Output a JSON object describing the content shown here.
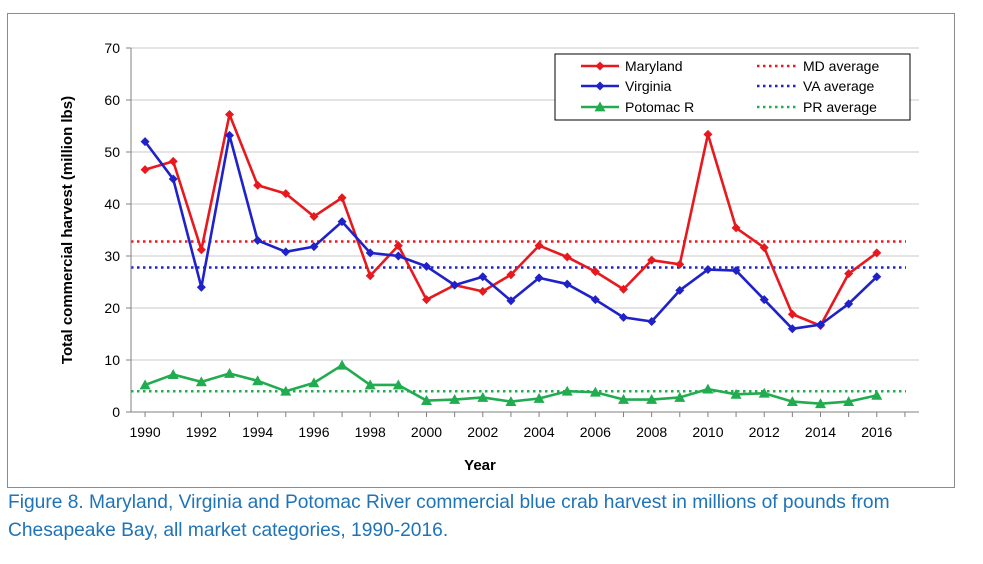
{
  "chart_data": {
    "type": "line",
    "title": "",
    "xlabel": "Year",
    "ylabel": "Total commercial harvest (million lbs)",
    "xlim": [
      1989.5,
      2017.5
    ],
    "ylim": [
      0,
      70
    ],
    "y_ticks": [
      "0",
      "10",
      "20",
      "30",
      "40",
      "50",
      "60",
      "70"
    ],
    "x_ticks": [
      "1990",
      "1992",
      "1994",
      "1996",
      "1998",
      "2000",
      "2002",
      "2004",
      "2006",
      "2008",
      "2010",
      "2012",
      "2014",
      "2016"
    ],
    "grid": true,
    "legend_position": "top-right",
    "x": [
      1990,
      1991,
      1992,
      1993,
      1994,
      1995,
      1996,
      1997,
      1998,
      1999,
      2000,
      2001,
      2002,
      2003,
      2004,
      2005,
      2006,
      2007,
      2008,
      2009,
      2010,
      2011,
      2012,
      2013,
      2014,
      2015,
      2016
    ],
    "series": [
      {
        "name": "Maryland",
        "color": "#e8191e",
        "marker": "diamond",
        "values": [
          46.6,
          48.2,
          31.2,
          57.2,
          43.6,
          42.0,
          37.6,
          41.2,
          26.2,
          32.0,
          21.6,
          24.4,
          23.2,
          26.4,
          32.0,
          29.8,
          27.0,
          23.6,
          29.2,
          28.4,
          53.4,
          35.4,
          31.6,
          18.8,
          16.6,
          26.6,
          30.6
        ]
      },
      {
        "name": "Virginia",
        "color": "#1f22c8",
        "marker": "diamond",
        "values": [
          52.0,
          44.8,
          24.0,
          53.2,
          33.0,
          30.8,
          31.8,
          36.6,
          30.6,
          30.0,
          28.0,
          24.4,
          26.0,
          21.4,
          25.8,
          24.6,
          21.6,
          18.2,
          17.4,
          23.4,
          27.4,
          27.2,
          21.6,
          16.0,
          16.8,
          20.8,
          26.0
        ]
      },
      {
        "name": "Potomac R",
        "color": "#22ac50",
        "marker": "triangle",
        "values": [
          5.2,
          7.2,
          5.8,
          7.4,
          6.0,
          4.0,
          5.6,
          9.0,
          5.2,
          5.2,
          2.2,
          2.4,
          2.8,
          2.0,
          2.6,
          4.0,
          3.8,
          2.4,
          2.4,
          2.8,
          4.4,
          3.4,
          3.6,
          2.0,
          1.6,
          2.0,
          3.2
        ]
      }
    ],
    "averages": [
      {
        "name": "MD average",
        "color": "#e8191e",
        "value": 32.8
      },
      {
        "name": "VA average",
        "color": "#1f22c8",
        "value": 27.8
      },
      {
        "name": "PR average",
        "color": "#22ac50",
        "value": 4.0
      }
    ]
  },
  "caption": "Figure 8. Maryland, Virginia and Potomac River commercial blue crab harvest in millions of pounds from Chesapeake Bay, all market categories, 1990-2016."
}
